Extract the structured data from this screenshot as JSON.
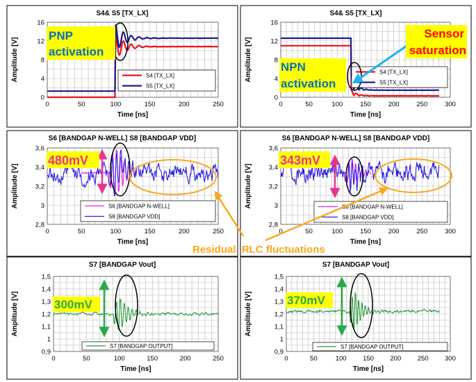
{
  "colors": {
    "s4": "#e8141a",
    "s5": "#1c1c8c",
    "s6": "#e020e0",
    "s8": "#3020e0",
    "s7": "#2a9a3a",
    "annot_green": "#2aa84a",
    "annot_pink": "#e8348c",
    "highlight_yellow": "#ffff00",
    "annot_red": "#ff0000",
    "arrow_cyan": "#20b0f0",
    "orange": "#f8a820",
    "annot_orange_text": "#f8a820",
    "annot_blue": "#0070c0"
  },
  "annotations": {
    "pnp": [
      "PNP",
      "activation"
    ],
    "npn": [
      "NPN",
      "activation"
    ],
    "sensor": [
      "Sensor",
      "saturation"
    ],
    "swing1": "480mV",
    "swing2": "343mV",
    "swing3": "300mV",
    "swing4": "370mV",
    "residual": "Residual  RLC fluctuations"
  },
  "chart_data": [
    {
      "id": "p1",
      "type": "line",
      "title": "S4& S5 [TX_LX]",
      "xlabel": "Time [ns]",
      "ylabel": "Amplitude [V]",
      "xlim": [
        0,
        250
      ],
      "ylim": [
        0,
        16
      ],
      "xticks": [
        0,
        50,
        100,
        150,
        200,
        250
      ],
      "yticks": [
        0,
        4,
        8,
        12,
        16
      ],
      "ytick_labels": [
        "0",
        "4",
        "8",
        "12",
        "16"
      ],
      "grid": true,
      "legend_position": "lower-right",
      "series": [
        {
          "name": "S4 [TX_LX]",
          "color_key": "s4",
          "signal": "rise",
          "x_step": 100,
          "low": 0,
          "high": 10.8,
          "peak": 13.5
        },
        {
          "name": "S5 [TX_LX]",
          "color_key": "s5",
          "signal": "rise",
          "x_step": 100,
          "low": 1.3,
          "high": 12.6,
          "peak": 15.5
        }
      ]
    },
    {
      "id": "p2",
      "type": "line",
      "title": "S4& S5 [TX_LX]",
      "xlabel": "Time [ns]",
      "ylabel": "Amplitude [V]",
      "xlim": [
        0,
        300
      ],
      "ylim": [
        0,
        16
      ],
      "xticks": [
        0,
        50,
        100,
        150,
        200,
        250,
        300
      ],
      "yticks": [
        0,
        4,
        8,
        12,
        16
      ],
      "ytick_labels": [
        "0",
        "4",
        "8",
        "12",
        "16"
      ],
      "grid": true,
      "legend_position": "lower-right",
      "series": [
        {
          "name": "S4 [TX_LX]",
          "color_key": "s4",
          "signal": "fall",
          "x_step": 125,
          "x_end": 280,
          "high": 11,
          "low": 0.3,
          "dip": 1.2
        },
        {
          "name": "S5 [TX_LX]",
          "color_key": "s5",
          "signal": "fall",
          "x_step": 125,
          "x_end": 280,
          "high": 12.6,
          "low": 1.5,
          "dip": 2.8
        }
      ]
    },
    {
      "id": "p3",
      "type": "line",
      "title": "S6 [BANDGAP  N-WELL] S8 [BANDGAP  VDD]",
      "xlabel": "Time [ns]",
      "ylabel": "Amplitude  [V]",
      "xlim": [
        0,
        250
      ],
      "ylim": [
        2.8,
        3.6
      ],
      "xticks": [
        0,
        50,
        100,
        150,
        200,
        250
      ],
      "yticks": [
        2.8,
        3.0,
        3.2,
        3.4,
        3.6
      ],
      "ytick_labels": [
        "2,8",
        "3",
        "3,2",
        "3,4",
        "3,6"
      ],
      "grid": true,
      "legend_position": "lower-right",
      "series": [
        {
          "name": "S6 [BANDGAP N-WELL]",
          "color_key": "s6",
          "signal": "burst",
          "x_start": 50,
          "x_end": 130,
          "t0": 100,
          "base": 3.34,
          "amp": 0.3,
          "noise": 0.015
        },
        {
          "name": "S8 [BANDGAP VDD]",
          "color_key": "s8",
          "signal": "burst_noise",
          "x_start": 0,
          "x_end": 250,
          "t0": 100,
          "base": 3.33,
          "amp": 0.22,
          "noise": 0.07
        }
      ]
    },
    {
      "id": "p4",
      "type": "line",
      "title": "S6 [BANDGAP  N-WELL] S8 [BANDGAP  VDD]",
      "xlabel": "Time [ns]",
      "ylabel": "Amplitude  [V]",
      "xlim": [
        0,
        300
      ],
      "ylim": [
        2.8,
        3.6
      ],
      "xticks": [
        0,
        50,
        100,
        150,
        200,
        250,
        300
      ],
      "yticks": [
        2.8,
        3.0,
        3.2,
        3.4,
        3.6
      ],
      "ytick_labels": [
        "2,8",
        "3",
        "3,2",
        "3,4",
        "3,6"
      ],
      "grid": true,
      "legend_position": "lower-right",
      "series": [
        {
          "name": "S6 [BANDGAP N-WELL]",
          "color_key": "s6",
          "signal": "burst",
          "x_start": 100,
          "x_end": 160,
          "t0": 125,
          "base": 3.34,
          "amp": 0.18,
          "noise": 0.015
        },
        {
          "name": "S8 [BANDGAP VDD]",
          "color_key": "s8",
          "signal": "burst_noise",
          "x_start": 0,
          "x_end": 280,
          "t0": 125,
          "base": 3.34,
          "amp": 0.16,
          "noise": 0.065
        }
      ]
    },
    {
      "id": "p5",
      "type": "line",
      "title": "S7 [BANDGAP  Vout]",
      "xlabel": "Time [ns]",
      "ylabel": "Amplitude  [V]",
      "xlim": [
        0,
        250
      ],
      "ylim": [
        0.9,
        1.5
      ],
      "xticks": [
        0,
        50,
        100,
        150,
        200,
        250
      ],
      "yticks": [
        0.9,
        1.0,
        1.1,
        1.2,
        1.3,
        1.4,
        1.5
      ],
      "ytick_labels": [
        "0,9",
        "1",
        "1,1",
        "1,2",
        "1,3",
        "1,4",
        "1,5"
      ],
      "grid": true,
      "legend_position": "lower-right",
      "series": [
        {
          "name": "S7 [BANDGAP OUTPUT]",
          "color_key": "s7",
          "signal": "burst_noise",
          "x_start": 0,
          "x_end": 250,
          "t0": 100,
          "base": 1.2,
          "amp": 0.15,
          "noise": 0.008
        }
      ]
    },
    {
      "id": "p6",
      "type": "line",
      "title": "S7 [BANDGAP  Vout]",
      "xlabel": "Time [ns]",
      "ylabel": "Amplitude  [V]",
      "xlim": [
        0,
        300
      ],
      "ylim": [
        0.9,
        1.5
      ],
      "xticks": [
        0,
        50,
        100,
        150,
        200,
        250,
        300
      ],
      "yticks": [
        0.9,
        1.0,
        1.1,
        1.2,
        1.3,
        1.4,
        1.5
      ],
      "ytick_labels": [
        "0,9",
        "1",
        "1,1",
        "1,2",
        "1,3",
        "1,4",
        "1,5"
      ],
      "grid": true,
      "legend_position": "lower-right",
      "series": [
        {
          "name": "S7 [BANDGAP OUTPUT]",
          "color_key": "s7",
          "signal": "burst_noise",
          "x_start": 0,
          "x_end": 280,
          "t0": 125,
          "base": 1.22,
          "amp": 0.17,
          "noise": 0.008
        }
      ]
    }
  ]
}
